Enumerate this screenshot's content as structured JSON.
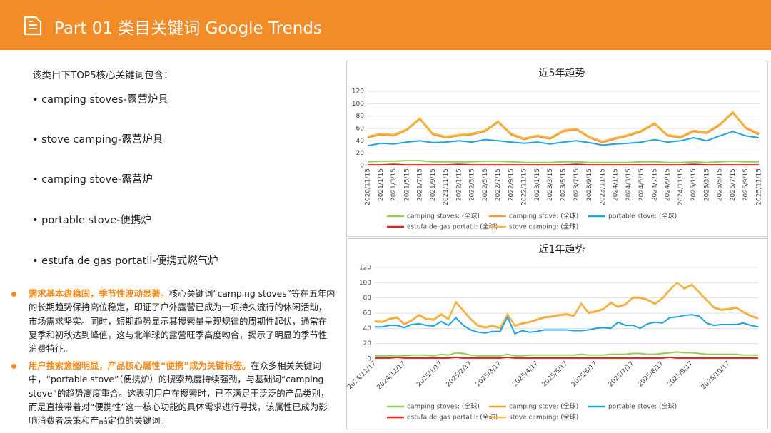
{
  "header": {
    "title": "Part 01 类目关键词 Google Trends"
  },
  "intro": "该类目下TOP5核心关键词包含：",
  "keywords": [
    "• camping stoves-露营炉具",
    "• stove camping-露营炉具",
    "• camping stove-露营炉",
    "• portable stove-便携炉",
    "• estufa de gas portatil-便携式燃气炉"
  ],
  "findings": [
    {
      "lead": "需求基本盘稳固，季节性波动显著。",
      "text": "核心关键词“camping stoves”等在五年内的长期趋势保持高位稳定，印证了户外露营已成为一项持久流行的休闲活动，市场需求坚实。同时，短期趋势显示其搜索量呈现规律的周期性起伏，通常在夏季和初秋达到峰值，这与北半球的露营旺季高度吻合，揭示了明显的季节性消费特征。"
    },
    {
      "lead": "用户搜索意图明显，产品核心属性“便携”成为关键标签。",
      "text": "在众多相关关键词中，“portable stove”（便携炉）的搜索热度持续强劲，与基础词“camping stove”的趋势高度重合。这表明用户在搜索时，已不满足于泛泛的产品类别，而是直接带着对“便携性”这一核心功能的具体需求进行寻找，该属性已成为影响消费者决策和产品定位的关键词。"
    }
  ],
  "chart_data": [
    {
      "type": "line",
      "title": "近5年趋势",
      "categories": [
        "2020/11/15",
        "2021/1/15",
        "2021/3/15",
        "2021/5/15",
        "2021/7/15",
        "2021/9/15",
        "2021/11/15",
        "2022/1/15",
        "2022/3/15",
        "2022/5/15",
        "2022/7/15",
        "2022/9/15",
        "2022/11/15",
        "2023/1/15",
        "2023/3/15",
        "2023/5/15",
        "2023/7/15",
        "2023/9/15",
        "2023/11/15",
        "2024/1/15",
        "2024/3/15",
        "2024/5/15",
        "2024/7/15",
        "2024/9/15",
        "2024/11/15",
        "2025/1/15",
        "2025/3/15",
        "2025/5/15",
        "2025/7/15",
        "2025/9/15",
        "2025/11/15"
      ],
      "ylim": [
        0,
        120
      ],
      "yticks": [
        0,
        20,
        40,
        60,
        80,
        100,
        120
      ],
      "grid": true,
      "series": [
        {
          "name": "camping stoves: (全球)",
          "color": "#92d050",
          "values": [
            6,
            7,
            7,
            8,
            8,
            6,
            6,
            6,
            6,
            7,
            7,
            6,
            5,
            5,
            5,
            6,
            6,
            5,
            5,
            5,
            5,
            6,
            6,
            5,
            5,
            6,
            5,
            6,
            7,
            6,
            6
          ]
        },
        {
          "name": "camping stove: (全球)",
          "color": "#f29b38",
          "values": [
            45,
            50,
            48,
            57,
            75,
            50,
            45,
            48,
            50,
            55,
            70,
            50,
            42,
            47,
            43,
            55,
            58,
            45,
            37,
            43,
            48,
            55,
            67,
            48,
            45,
            55,
            52,
            65,
            85,
            60,
            50
          ]
        },
        {
          "name": "portable stove: (全球)",
          "color": "#1ea3e3",
          "values": [
            32,
            36,
            35,
            38,
            40,
            37,
            38,
            40,
            38,
            42,
            40,
            38,
            36,
            38,
            35,
            38,
            40,
            37,
            33,
            35,
            36,
            38,
            42,
            38,
            40,
            45,
            40,
            48,
            55,
            48,
            45
          ]
        },
        {
          "name": "estufa de gas portatil: (全球)",
          "color": "#e0201c",
          "values": [
            1,
            1,
            2,
            1,
            1,
            1,
            1,
            2,
            1,
            1,
            1,
            1,
            1,
            1,
            1,
            1,
            2,
            1,
            1,
            1,
            1,
            1,
            1,
            1,
            1,
            2,
            1,
            1,
            1,
            1,
            1
          ]
        },
        {
          "name": "stove camping: (全球)",
          "color": "#f5b942",
          "values": [
            47,
            52,
            50,
            59,
            77,
            52,
            47,
            50,
            52,
            57,
            72,
            52,
            44,
            49,
            45,
            57,
            60,
            47,
            39,
            45,
            50,
            57,
            69,
            50,
            47,
            57,
            54,
            67,
            87,
            62,
            52
          ]
        }
      ]
    },
    {
      "type": "line",
      "title": "近1年趋势",
      "categories": [
        "2024/11/17",
        null,
        null,
        null,
        "2024/12/17",
        null,
        null,
        null,
        null,
        "2025/1/17",
        null,
        null,
        null,
        "2025/2/17",
        null,
        null,
        null,
        "2025/3/17",
        null,
        null,
        null,
        null,
        "2025/4/17",
        null,
        null,
        null,
        "2025/5/17",
        null,
        null,
        null,
        "2025/6/17",
        null,
        null,
        null,
        null,
        "2025/7/17",
        null,
        null,
        null,
        "2025/8/17",
        null,
        null,
        null,
        "2025/9/17",
        null,
        null,
        null,
        null,
        "2025/10/17",
        null,
        null,
        null,
        null
      ],
      "ylim": [
        0,
        120
      ],
      "yticks": [
        0,
        20,
        40,
        60,
        80,
        100,
        120
      ],
      "grid": true,
      "series": [
        {
          "name": "camping stoves: (全球)",
          "color": "#92d050",
          "values": [
            4,
            4,
            4,
            4,
            4,
            5,
            5,
            5,
            4,
            6,
            5,
            8,
            7,
            5,
            4,
            4,
            4,
            4,
            6,
            4,
            4,
            5,
            5,
            5,
            5,
            5,
            5,
            5,
            6,
            5,
            5,
            5,
            6,
            6,
            6,
            7,
            7,
            6,
            6,
            7,
            8,
            9,
            8,
            8,
            7,
            6,
            6,
            6,
            6,
            6,
            5,
            5,
            5
          ]
        },
        {
          "name": "camping stove: (全球)",
          "color": "#f29b38",
          "values": [
            49,
            48,
            52,
            54,
            45,
            50,
            57,
            52,
            51,
            58,
            52,
            74,
            63,
            52,
            43,
            41,
            43,
            40,
            58,
            43,
            46,
            48,
            51,
            54,
            55,
            57,
            58,
            56,
            72,
            60,
            62,
            65,
            73,
            68,
            71,
            80,
            80,
            77,
            72,
            79,
            90,
            100,
            92,
            97,
            87,
            77,
            67,
            64,
            65,
            67,
            61,
            56,
            53
          ]
        },
        {
          "name": "portable stove: (全球)",
          "color": "#1ea3e3",
          "values": [
            42,
            42,
            44,
            44,
            41,
            45,
            46,
            44,
            43,
            49,
            44,
            54,
            44,
            38,
            35,
            34,
            36,
            36,
            55,
            33,
            37,
            35,
            36,
            38,
            38,
            38,
            38,
            37,
            37,
            38,
            40,
            41,
            40,
            48,
            44,
            44,
            40,
            46,
            48,
            47,
            54,
            55,
            57,
            58,
            56,
            47,
            44,
            45,
            45,
            45,
            47,
            44,
            42
          ]
        },
        {
          "name": "estufa de gas portatil: (全球)",
          "color": "#e0201c",
          "values": [
            1,
            1,
            1,
            2,
            1,
            1,
            1,
            1,
            1,
            1,
            1,
            2,
            1,
            1,
            1,
            1,
            1,
            1,
            2,
            1,
            1,
            1,
            1,
            1,
            1,
            1,
            1,
            1,
            1,
            1,
            1,
            1,
            1,
            1,
            1,
            1,
            1,
            1,
            1,
            1,
            2,
            1,
            1,
            1,
            1,
            1,
            1,
            1,
            1,
            1,
            1,
            1,
            1
          ]
        },
        {
          "name": "stove camping: (全球)",
          "color": "#f5b942",
          "values": [
            50,
            49,
            53,
            55,
            46,
            51,
            58,
            53,
            52,
            59,
            53,
            75,
            64,
            53,
            44,
            42,
            44,
            41,
            59,
            44,
            47,
            49,
            52,
            55,
            56,
            58,
            59,
            57,
            73,
            61,
            63,
            66,
            74,
            69,
            72,
            81,
            81,
            78,
            73,
            80,
            91,
            100,
            93,
            98,
            88,
            78,
            68,
            65,
            66,
            68,
            62,
            57,
            54
          ]
        }
      ]
    }
  ]
}
